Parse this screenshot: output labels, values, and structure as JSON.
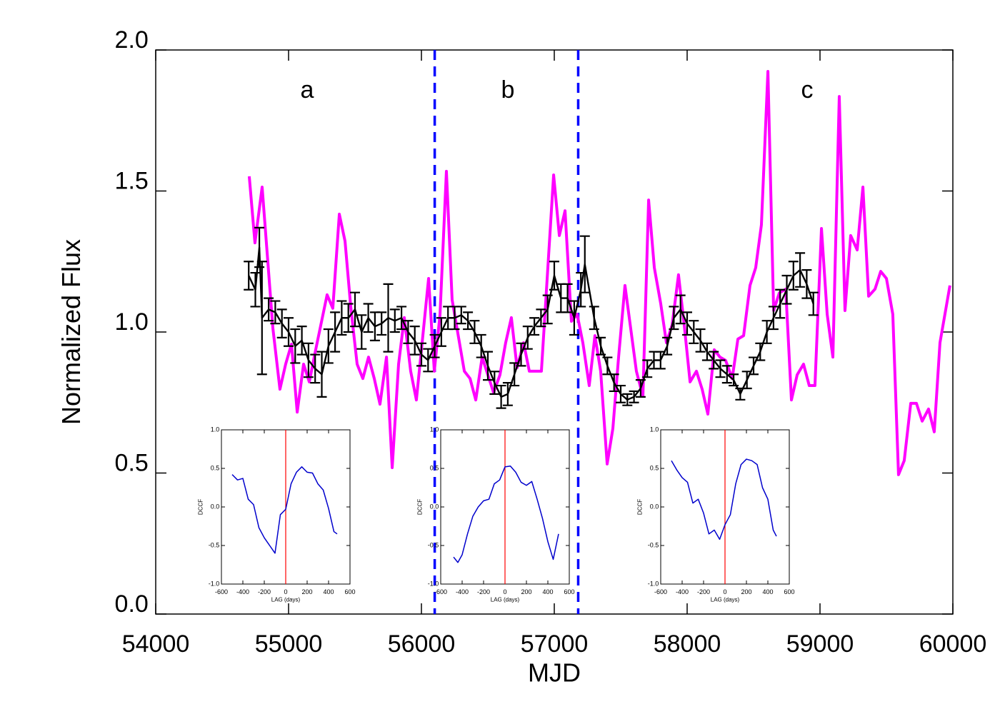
{
  "chart_data": [
    {
      "type": "line",
      "xlabel": "MJD",
      "ylabel": "Normalized Flux",
      "xlim": [
        54000,
        60000
      ],
      "ylim": [
        0,
        2
      ],
      "xticks": [
        54000,
        55000,
        56000,
        57000,
        58000,
        59000,
        60000
      ],
      "yticks": [
        {
          "value": 0,
          "label": "0.0"
        },
        0.5,
        {
          "value": 1,
          "label": "1.0"
        },
        1.5,
        {
          "value": 2,
          "label": "2.0"
        }
      ],
      "annotations": [
        "a",
        "b",
        "c"
      ],
      "vlines": [
        {
          "value": 56100,
          "color": "#0000ff"
        },
        {
          "value": 57180,
          "color": "#0000ff"
        }
      ],
      "series": [
        {
          "color": "#ff00ff",
          "x": [
            54704,
            54747,
            54801,
            54882,
            54935,
            54978,
            55022,
            55065,
            55113,
            55156,
            55204,
            55290,
            55333,
            55382,
            55425,
            55468,
            55516,
            55559,
            55602,
            55645,
            55688,
            55737,
            55780,
            55828,
            55871,
            55919,
            55962,
            56054,
            56097,
            56140,
            56188,
            56231,
            56323,
            56366,
            56409,
            56457,
            56500,
            56543,
            56591,
            56634,
            56677,
            56720,
            56769,
            56812,
            56903,
            56995,
            57038,
            57081,
            57129,
            57172,
            57215,
            57263,
            57306,
            57349,
            57398,
            57441,
            57484,
            57532,
            57618,
            57667,
            57710,
            57753,
            57801,
            57844,
            57887,
            57935,
            57978,
            58022,
            58070,
            58113,
            58156,
            58204,
            58247,
            58290,
            58339,
            58382,
            58425,
            58473,
            58516,
            58559,
            58608,
            58651,
            58694,
            58742,
            58785,
            58828,
            58876,
            58919,
            58962,
            59011,
            59054,
            59097,
            59145,
            59188,
            59231,
            59280,
            59323,
            59366,
            59414,
            59457,
            59500,
            59548,
            59591,
            59634,
            59683,
            59726,
            59769,
            59817,
            59860,
            59903,
            59978
          ],
          "values": [
            1.552,
            1.316,
            1.514,
            1.013,
            0.797,
            0.886,
            0.957,
            0.716,
            0.886,
            0.823,
            0.937,
            1.132,
            1.084,
            1.418,
            1.322,
            1.089,
            0.886,
            0.835,
            0.911,
            0.835,
            0.744,
            0.911,
            0.519,
            0.886,
            1.051,
            0.861,
            0.759,
            1.19,
            0.861,
            1.063,
            1.57,
            1.114,
            0.861,
            0.835,
            0.759,
            0.911,
            0.848,
            0.785,
            0.848,
            0.962,
            1.051,
            0.873,
            0.962,
            0.861,
            0.861,
            1.557,
            1.342,
            1.43,
            1.038,
            1.063,
            0.962,
            0.81,
            0.987,
            0.861,
            0.532,
            0.658,
            0.911,
            1.165,
            0.861,
            0.772,
            1.468,
            1.228,
            1.101,
            0.962,
            1.025,
            1.203,
            1.025,
            0.823,
            0.861,
            0.797,
            0.709,
            0.937,
            0.911,
            0.899,
            0.835,
            0.975,
            0.987,
            1.165,
            1.228,
            1.38,
            1.924,
            1.076,
            1.139,
            1.152,
            0.759,
            0.848,
            0.886,
            0.81,
            0.81,
            1.367,
            1.063,
            0.911,
            1.835,
            1.076,
            1.342,
            1.291,
            1.514,
            1.127,
            1.152,
            1.215,
            1.19,
            1.063,
            0.494,
            0.544,
            0.747,
            0.747,
            0.684,
            0.727,
            0.646,
            0.962,
            1.165
          ]
        },
        {
          "color": "#000000",
          "x": [
            54700,
            54750,
            54780,
            54800,
            54850,
            54900,
            54950,
            55000,
            55050,
            55100,
            55150,
            55200,
            55250,
            55300,
            55350,
            55400,
            55450,
            55500,
            55550,
            55600,
            55650,
            55700,
            55750,
            55800,
            55850,
            55900,
            55950,
            56000,
            56050,
            56100,
            56150,
            56200,
            56250,
            56300,
            56350,
            56400,
            56450,
            56500,
            56550,
            56600,
            56650,
            56700,
            56750,
            56800,
            56850,
            56900,
            56950,
            57000,
            57050,
            57100,
            57150,
            57200,
            57230,
            57300,
            57350,
            57400,
            57450,
            57500,
            57550,
            57600,
            57650,
            57700,
            57750,
            57800,
            57850,
            57900,
            57950,
            58000,
            58050,
            58100,
            58150,
            58200,
            58250,
            58300,
            58350,
            58400,
            58450,
            58500,
            58550,
            58600,
            58650,
            58700,
            58750,
            58800,
            58850,
            58900,
            58950
          ],
          "values": [
            1.2,
            1.15,
            1.3,
            1.05,
            1.08,
            1.07,
            1.03,
            1.0,
            0.95,
            0.97,
            0.9,
            0.87,
            0.85,
            0.95,
            1.0,
            1.05,
            1.05,
            1.08,
            1.0,
            1.05,
            1.02,
            1.03,
            1.05,
            1.04,
            1.05,
            1.0,
            0.97,
            0.92,
            0.9,
            0.95,
            1.0,
            1.05,
            1.05,
            1.06,
            1.04,
            1.0,
            0.95,
            0.88,
            0.82,
            0.77,
            0.78,
            0.85,
            0.92,
            0.98,
            1.02,
            1.05,
            1.08,
            1.2,
            1.12,
            1.12,
            1.05,
            1.15,
            1.24,
            1.05,
            0.95,
            0.88,
            0.82,
            0.78,
            0.76,
            0.77,
            0.8,
            0.87,
            0.9,
            0.9,
            0.95,
            1.05,
            1.08,
            1.03,
            1.0,
            0.97,
            0.93,
            0.9,
            0.87,
            0.85,
            0.83,
            0.78,
            0.83,
            0.88,
            0.93,
            1.0,
            1.05,
            1.1,
            1.15,
            1.2,
            1.22,
            1.17,
            1.1
          ],
          "errors": [
            0.05,
            0.06,
            0.07,
            0.2,
            0.04,
            0.04,
            0.05,
            0.05,
            0.06,
            0.05,
            0.06,
            0.05,
            0.08,
            0.06,
            0.07,
            0.06,
            0.05,
            0.06,
            0.06,
            0.05,
            0.05,
            0.04,
            0.12,
            0.04,
            0.04,
            0.04,
            0.05,
            0.04,
            0.04,
            0.04,
            0.05,
            0.04,
            0.04,
            0.03,
            0.03,
            0.04,
            0.04,
            0.05,
            0.04,
            0.04,
            0.04,
            0.04,
            0.04,
            0.04,
            0.03,
            0.03,
            0.05,
            0.05,
            0.05,
            0.05,
            0.06,
            0.06,
            0.1,
            0.04,
            0.03,
            0.03,
            0.03,
            0.03,
            0.02,
            0.02,
            0.03,
            0.03,
            0.03,
            0.03,
            0.03,
            0.04,
            0.05,
            0.04,
            0.04,
            0.04,
            0.03,
            0.03,
            0.03,
            0.03,
            0.02,
            0.02,
            0.03,
            0.03,
            0.03,
            0.04,
            0.04,
            0.05,
            0.05,
            0.05,
            0.06,
            0.05,
            0.04
          ]
        }
      ]
    },
    {
      "type": "line",
      "xlabel": "LAG (days)",
      "ylabel": "DCCF",
      "xlim": [
        -600,
        600
      ],
      "ylim": [
        -1,
        1
      ],
      "xticks": [
        -600,
        -400,
        -200,
        0,
        200,
        400,
        600
      ],
      "yticks": [
        {
          "value": -1,
          "label": "-1.0"
        },
        -0.5,
        {
          "value": 0,
          "label": "0.0"
        },
        0.5,
        {
          "value": 1,
          "label": "1.0"
        }
      ],
      "vlines": [
        {
          "value": 0,
          "color": "#ff0000"
        }
      ],
      "series": [
        {
          "color": "#0000cc",
          "x": [
            -500,
            -450,
            -400,
            -350,
            -300,
            -250,
            -200,
            -150,
            -100,
            -50,
            0,
            50,
            100,
            150,
            200,
            250,
            300,
            350,
            400,
            450,
            480
          ],
          "values": [
            0.42,
            0.35,
            0.37,
            0.1,
            0.03,
            -0.27,
            -0.4,
            -0.5,
            -0.6,
            -0.1,
            -0.03,
            0.3,
            0.45,
            0.52,
            0.45,
            0.44,
            0.3,
            0.22,
            -0.02,
            -0.32,
            -0.35
          ]
        }
      ]
    },
    {
      "type": "line",
      "xlabel": "LAG (days)",
      "ylabel": "DCCF",
      "xlim": [
        -600,
        600
      ],
      "ylim": [
        -1,
        1
      ],
      "xticks": [
        -600,
        -400,
        -200,
        0,
        200,
        400,
        600
      ],
      "yticks": [
        {
          "value": -1,
          "label": "-1.0"
        },
        -0.5,
        {
          "value": 0,
          "label": "0.0"
        },
        0.5,
        {
          "value": 1,
          "label": "1.0"
        }
      ],
      "vlines": [
        {
          "value": 0,
          "color": "#ff0000"
        }
      ],
      "series": [
        {
          "color": "#0000cc",
          "x": [
            -480,
            -440,
            -400,
            -350,
            -300,
            -250,
            -200,
            -150,
            -100,
            -50,
            0,
            50,
            100,
            150,
            200,
            250,
            300,
            350,
            400,
            450,
            500
          ],
          "values": [
            -0.65,
            -0.72,
            -0.62,
            -0.35,
            -0.12,
            0.0,
            0.08,
            0.1,
            0.3,
            0.35,
            0.52,
            0.53,
            0.45,
            0.32,
            0.28,
            0.33,
            0.1,
            -0.15,
            -0.45,
            -0.68,
            -0.35
          ]
        }
      ]
    },
    {
      "type": "line",
      "xlabel": "LAG (days)",
      "ylabel": "DCCF",
      "xlim": [
        -600,
        600
      ],
      "ylim": [
        -1,
        1
      ],
      "xticks": [
        -600,
        -400,
        -200,
        0,
        200,
        400,
        600
      ],
      "yticks": [
        {
          "value": -1,
          "label": "-1.0"
        },
        -0.5,
        {
          "value": 0,
          "label": "0.0"
        },
        0.5,
        {
          "value": 1,
          "label": "1.0"
        }
      ],
      "vlines": [
        {
          "value": 0,
          "color": "#ff0000"
        }
      ],
      "series": [
        {
          "color": "#0000cc",
          "x": [
            -500,
            -450,
            -400,
            -350,
            -300,
            -250,
            -200,
            -150,
            -100,
            -50,
            0,
            50,
            100,
            150,
            200,
            250,
            300,
            350,
            400,
            450,
            480
          ],
          "values": [
            0.6,
            0.48,
            0.38,
            0.32,
            0.05,
            0.1,
            -0.08,
            -0.35,
            -0.3,
            -0.42,
            -0.23,
            -0.1,
            0.3,
            0.55,
            0.62,
            0.6,
            0.55,
            0.25,
            0.1,
            -0.3,
            -0.38
          ]
        }
      ]
    }
  ]
}
